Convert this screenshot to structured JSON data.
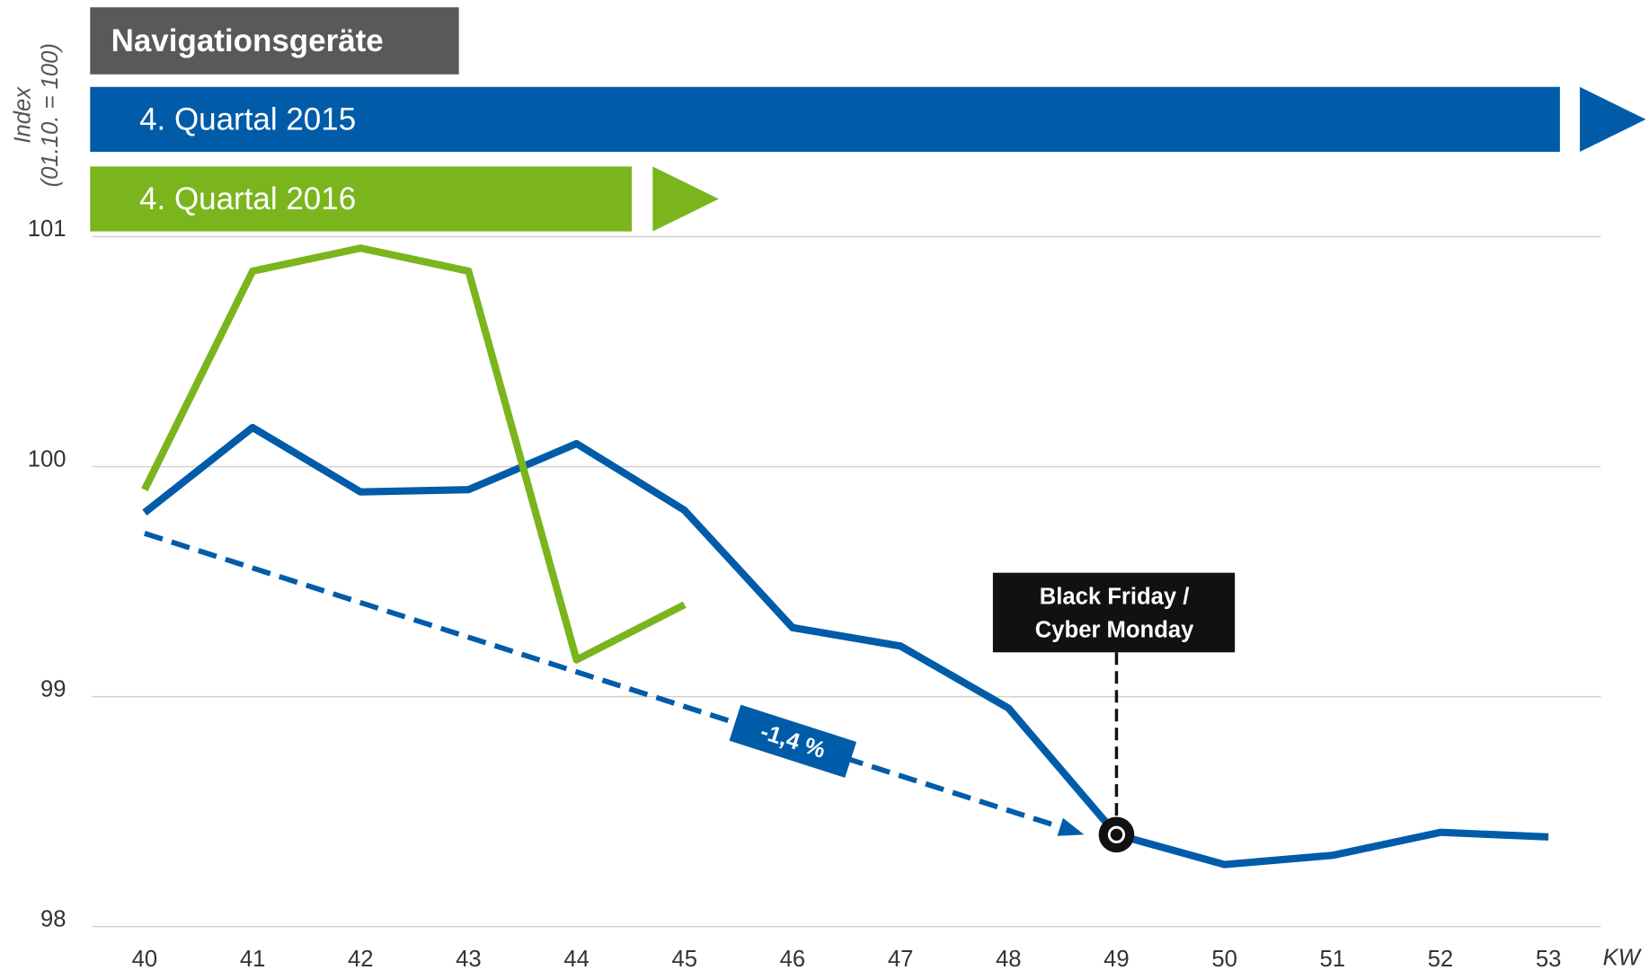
{
  "chart_data": {
    "type": "line",
    "title": "Navigationsgeräte",
    "y_label": [
      "Index",
      "(01.10. = 100)"
    ],
    "x_label": "KW",
    "categories": [
      "40",
      "41",
      "42",
      "43",
      "44",
      "45",
      "46",
      "47",
      "48",
      "49",
      "50",
      "51",
      "52",
      "53"
    ],
    "series": [
      {
        "name": "4. Quartal 2015",
        "color": "#005ca9",
        "values": [
          99.8,
          100.17,
          99.89,
          99.9,
          100.1,
          99.81,
          99.3,
          99.22,
          98.95,
          98.4,
          98.27,
          98.31,
          98.41,
          98.39
        ]
      },
      {
        "name": "4. Quartal 2016",
        "color": "#7ab51d",
        "values": [
          99.9,
          100.85,
          100.95,
          100.85,
          99.16,
          99.4,
          null,
          null,
          null,
          null,
          null,
          null,
          null,
          null
        ]
      }
    ],
    "ylim": [
      98,
      101
    ],
    "yticks": [
      98,
      99,
      100,
      101
    ],
    "grid": true,
    "trend": {
      "start": 99.71,
      "end": 98.4,
      "label": "-1,4 %"
    },
    "annotation": {
      "category": "49",
      "lines": [
        "Black Friday /",
        "Cyber Monday"
      ]
    }
  }
}
